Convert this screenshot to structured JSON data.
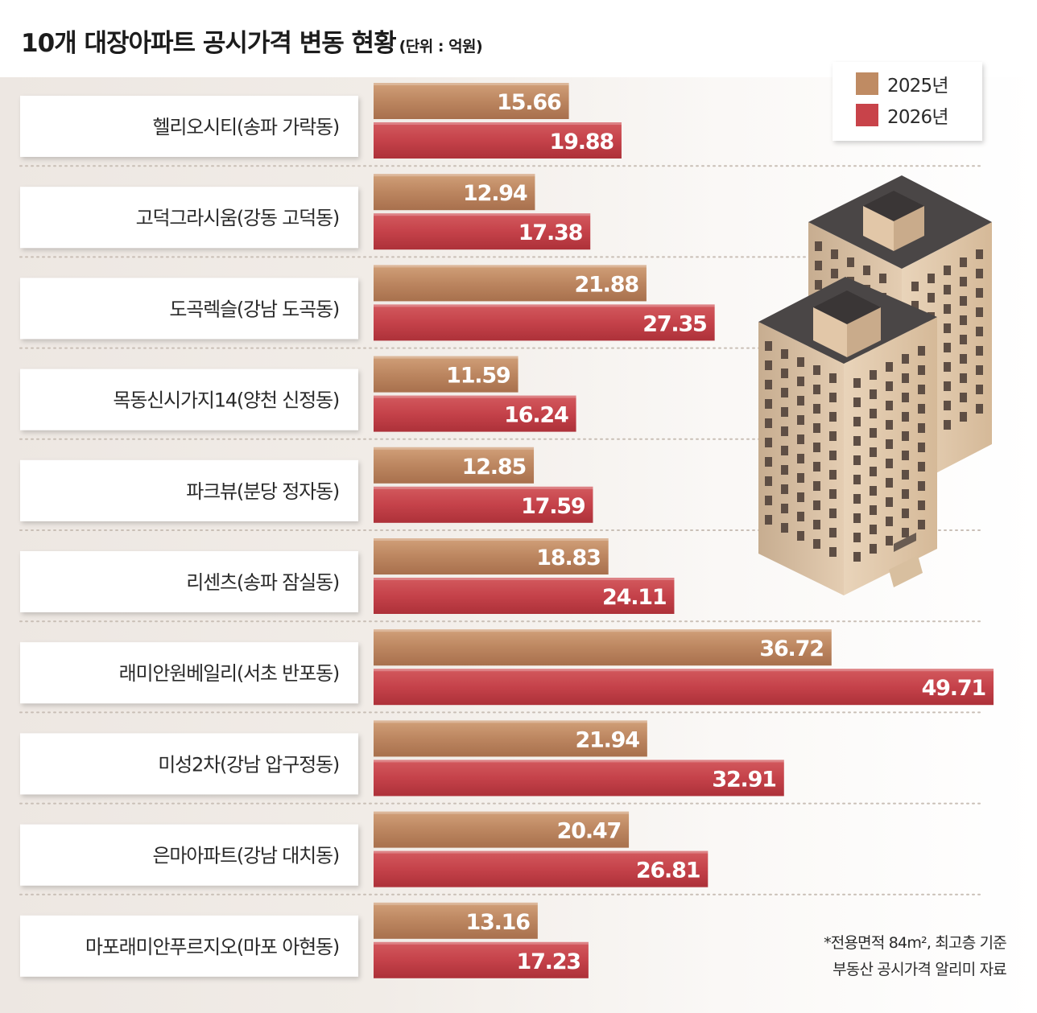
{
  "header": {
    "title": "10개 대장아파트 공시가격 변동 현황",
    "unit": "(단위 : 억원)"
  },
  "chart_data": {
    "type": "bar",
    "orientation": "horizontal",
    "title": "10개 대장아파트 공시가격 변동 현황",
    "unit": "(단위 : 억원)",
    "categories": [
      "헬리오시티(송파 가락동)",
      "고덕그라시움(강동 고덕동)",
      "도곡렉슬(강남 도곡동)",
      "목동신시가지14(양천 신정동)",
      "파크뷰(분당 정자동)",
      "리센츠(송파 잠실동)",
      "래미안원베일리(서초 반포동)",
      "미성2차(강남 압구정동)",
      "은마아파트(강남 대치동)",
      "마포래미안푸르지오(마포 아현동)"
    ],
    "series": [
      {
        "name": "2025년",
        "color": "#c08a62",
        "values": [
          15.66,
          12.94,
          21.88,
          11.59,
          12.85,
          18.83,
          36.72,
          21.94,
          20.47,
          13.16
        ]
      },
      {
        "name": "2026년",
        "color": "#c8434a",
        "values": [
          19.88,
          17.38,
          27.35,
          16.24,
          17.59,
          24.11,
          49.71,
          32.91,
          26.81,
          17.23
        ]
      }
    ],
    "xlim": [
      0,
      50
    ],
    "grid": false,
    "legend": "top-right"
  },
  "notes": [
    "*전용면적 84m², 최고층 기준",
    "부동산 공시가격 알리미 자료"
  ]
}
